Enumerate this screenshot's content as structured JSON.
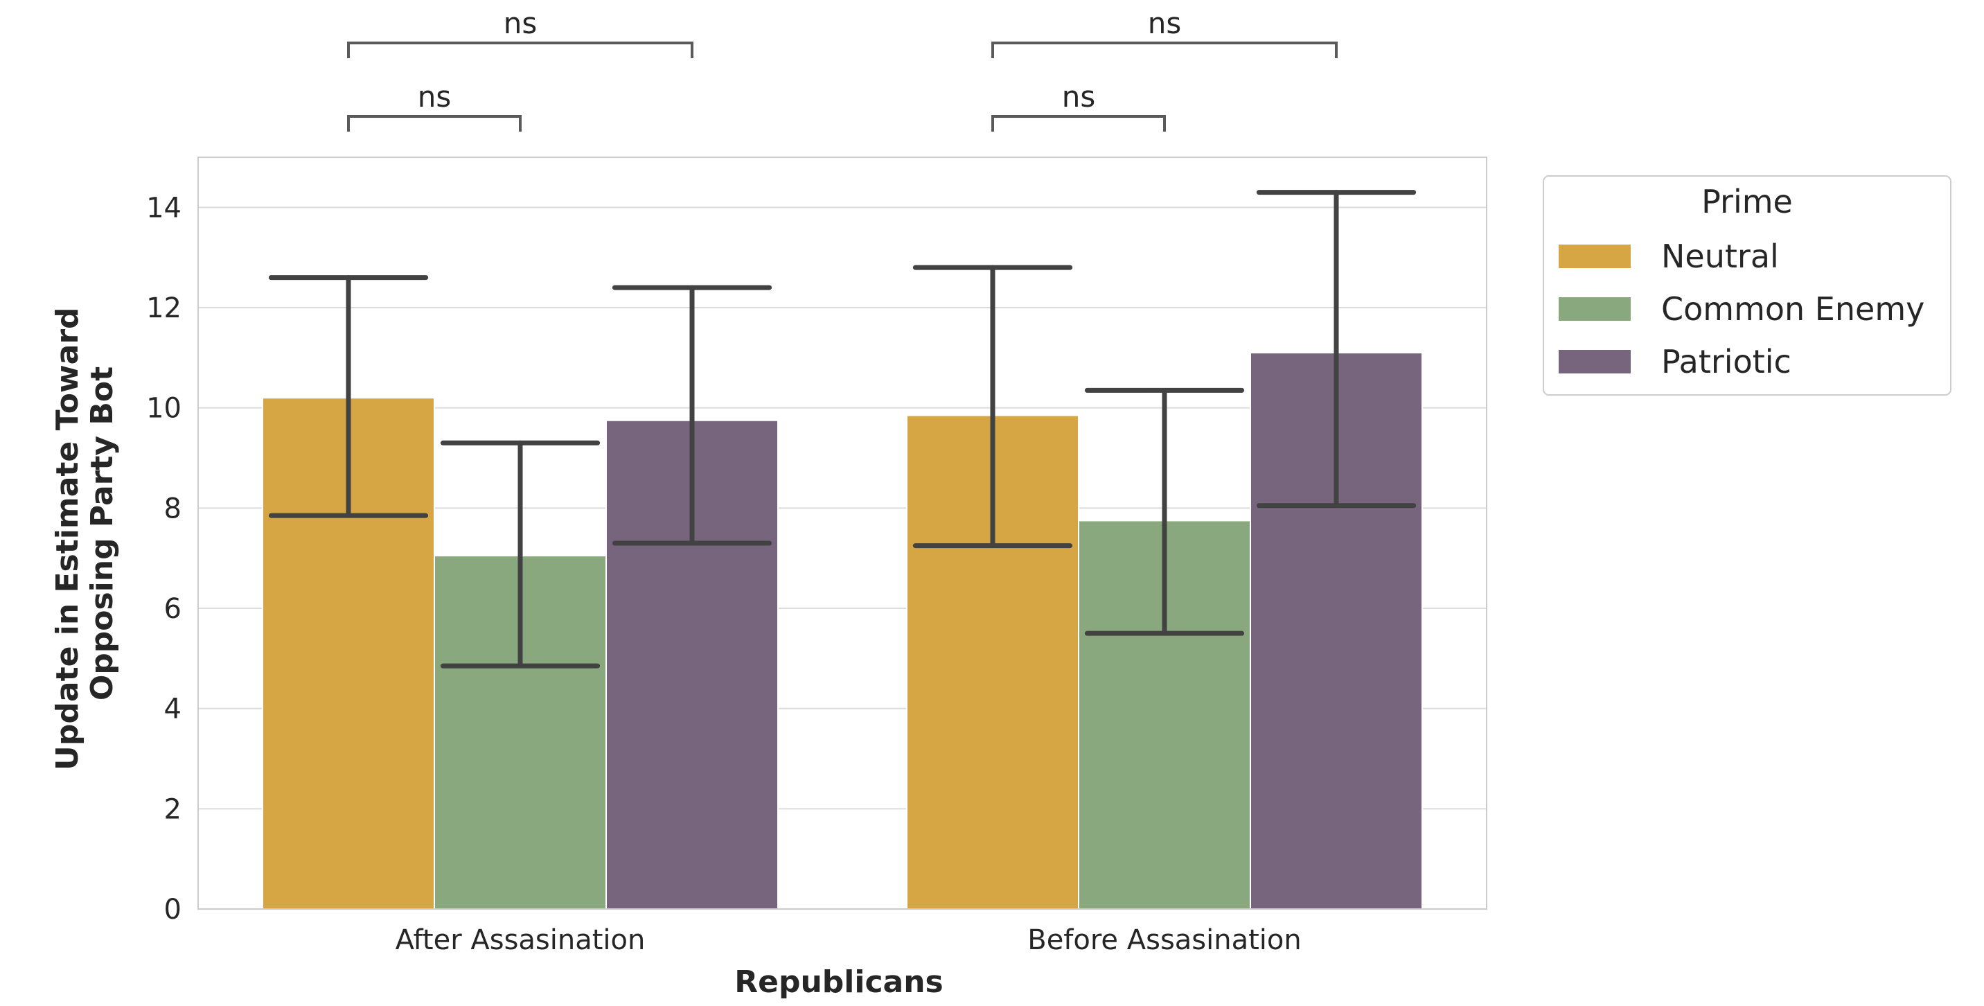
{
  "chart_data": {
    "type": "bar",
    "xlabel": "Republicans",
    "ylabel_lines": [
      "Update in Estimate Toward",
      "Opposing Party Bot"
    ],
    "categories": [
      "After Assasination",
      "Before Assasination"
    ],
    "ylim": [
      0,
      15
    ],
    "yticks": [
      0,
      2,
      4,
      6,
      8,
      10,
      12,
      14
    ],
    "grid": true,
    "legend": {
      "title": "Prime",
      "placement": "outside-right",
      "entries": [
        "Neutral",
        "Common Enemy",
        "Patriotic"
      ]
    },
    "series": [
      {
        "name": "Neutral",
        "color": "#d6a644",
        "values": [
          10.2,
          9.85
        ],
        "ci_low": [
          7.85,
          7.25
        ],
        "ci_high": [
          12.6,
          12.8
        ]
      },
      {
        "name": "Common Enemy",
        "color": "#8aa87d",
        "values": [
          7.05,
          7.75
        ],
        "ci_low": [
          4.85,
          5.5
        ],
        "ci_high": [
          9.3,
          10.35
        ]
      },
      {
        "name": "Patriotic",
        "color": "#77647d",
        "values": [
          9.75,
          11.1
        ],
        "ci_low": [
          7.3,
          8.05
        ],
        "ci_high": [
          12.4,
          14.3
        ]
      }
    ],
    "annotations": [
      {
        "category": 0,
        "from": 0,
        "to": 1,
        "text": "ns",
        "level": 1
      },
      {
        "category": 0,
        "from": 0,
        "to": 2,
        "text": "ns",
        "level": 2
      },
      {
        "category": 1,
        "from": 0,
        "to": 1,
        "text": "ns",
        "level": 1
      },
      {
        "category": 1,
        "from": 0,
        "to": 2,
        "text": "ns",
        "level": 2
      }
    ]
  }
}
